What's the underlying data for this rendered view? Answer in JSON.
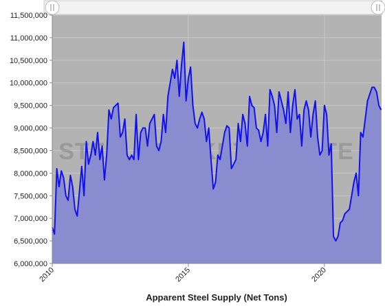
{
  "chart_data": {
    "type": "area",
    "x_label": "Apparent Steel Supply (Net Tons)",
    "watermark": "STEEL MARKET UPDATE",
    "xlim": [
      2010,
      2022.1
    ],
    "xticks": [
      2010,
      2015,
      2020
    ],
    "ylim": [
      6000000,
      11500000
    ],
    "yticks": [
      {
        "value": 6000000,
        "label": "6,000,000"
      },
      {
        "value": 6500000,
        "label": "6,500,000"
      },
      {
        "value": 7000000,
        "label": "7,000,000"
      },
      {
        "value": 7500000,
        "label": "7,500,000"
      },
      {
        "value": 8000000,
        "label": "8,000,000"
      },
      {
        "value": 8500000,
        "label": "8,500,000"
      },
      {
        "value": 9000000,
        "label": "9,000,000"
      },
      {
        "value": 9500000,
        "label": "9,500,000"
      },
      {
        "value": 10000000,
        "label": "10,000,000"
      },
      {
        "value": 10500000,
        "label": "10,500,000"
      },
      {
        "value": 11000000,
        "label": "11,000,000"
      },
      {
        "value": 11500000,
        "label": "11,500,000"
      }
    ],
    "grid": true,
    "line_color": "#1010f0",
    "fill_color": "#8a8cd0",
    "background_color": "#b3b3b3",
    "x": [
      2010,
      2010.083,
      2010.167,
      2010.25,
      2010.333,
      2010.417,
      2010.5,
      2010.583,
      2010.667,
      2010.75,
      2010.833,
      2010.917,
      2011,
      2011.083,
      2011.167,
      2011.25,
      2011.333,
      2011.417,
      2011.5,
      2011.583,
      2011.667,
      2011.75,
      2011.833,
      2011.917,
      2012,
      2012.083,
      2012.167,
      2012.25,
      2012.333,
      2012.417,
      2012.5,
      2012.583,
      2012.667,
      2012.75,
      2012.833,
      2012.917,
      2013,
      2013.083,
      2013.167,
      2013.25,
      2013.333,
      2013.417,
      2013.5,
      2013.583,
      2013.667,
      2013.75,
      2013.833,
      2013.917,
      2014,
      2014.083,
      2014.167,
      2014.25,
      2014.333,
      2014.417,
      2014.5,
      2014.583,
      2014.667,
      2014.75,
      2014.833,
      2014.917,
      2015,
      2015.083,
      2015.167,
      2015.25,
      2015.333,
      2015.417,
      2015.5,
      2015.583,
      2015.667,
      2015.75,
      2015.833,
      2015.917,
      2016,
      2016.083,
      2016.167,
      2016.25,
      2016.333,
      2016.417,
      2016.5,
      2016.583,
      2016.667,
      2016.75,
      2016.833,
      2016.917,
      2017,
      2017.083,
      2017.167,
      2017.25,
      2017.333,
      2017.417,
      2017.5,
      2017.583,
      2017.667,
      2017.75,
      2017.833,
      2017.917,
      2018,
      2018.083,
      2018.167,
      2018.25,
      2018.333,
      2018.417,
      2018.5,
      2018.583,
      2018.667,
      2018.75,
      2018.833,
      2018.917,
      2019,
      2019.083,
      2019.167,
      2019.25,
      2019.333,
      2019.417,
      2019.5,
      2019.583,
      2019.667,
      2019.75,
      2019.833,
      2019.917,
      2020,
      2020.083,
      2020.167,
      2020.25,
      2020.333,
      2020.417,
      2020.5,
      2020.583,
      2020.667,
      2020.75,
      2020.833,
      2020.917,
      2021,
      2021.083,
      2021.167,
      2021.25,
      2021.333,
      2021.417,
      2021.5,
      2021.583,
      2021.667,
      2021.75,
      2021.833,
      2021.917,
      2022,
      2022.083
    ],
    "values": [
      6800000,
      6650000,
      8100000,
      7700000,
      8050000,
      7900000,
      7500000,
      7400000,
      7950000,
      7700000,
      7200000,
      7050000,
      7600000,
      8150000,
      7500000,
      8700000,
      8200000,
      8400000,
      8700000,
      8400000,
      8900000,
      8300000,
      8600000,
      7850000,
      8400000,
      9400000,
      9200000,
      9450000,
      9500000,
      9550000,
      8800000,
      8900000,
      9200000,
      8400000,
      8300000,
      8400000,
      8300000,
      9300000,
      8300000,
      8900000,
      9000000,
      9000000,
      8600000,
      9100000,
      9200000,
      9300000,
      8600000,
      8500000,
      8700000,
      9300000,
      8900000,
      9700000,
      10000000,
      10300000,
      10100000,
      10500000,
      9700000,
      10400000,
      10900000,
      9600000,
      10100000,
      10350000,
      9500000,
      9100000,
      9000000,
      9200000,
      9350000,
      9200000,
      8700000,
      9000000,
      8300000,
      7650000,
      7800000,
      8400000,
      8300000,
      8600000,
      8900000,
      9050000,
      9000000,
      8100000,
      8200000,
      8300000,
      9100000,
      8700000,
      9300000,
      9100000,
      8600000,
      9700000,
      9500000,
      9450000,
      9000000,
      8950000,
      8700000,
      8900000,
      9300000,
      8600000,
      9850000,
      9700000,
      9500000,
      8900000,
      9800000,
      9600000,
      9400000,
      9100000,
      9800000,
      8900000,
      9500000,
      9850000,
      9200000,
      9300000,
      8600000,
      9400000,
      9600000,
      9400000,
      8800000,
      9300000,
      9600000,
      8800000,
      8400000,
      8500000,
      9500000,
      9300000,
      8400000,
      8650000,
      6600000,
      6500000,
      6600000,
      6900000,
      6950000,
      7100000,
      7150000,
      7200000,
      7500000,
      7800000,
      8000000,
      7500000,
      8900000,
      8800000,
      9200000,
      9600000,
      9750000,
      9900000,
      9900000,
      9800000,
      9500000,
      9400000
    ]
  }
}
